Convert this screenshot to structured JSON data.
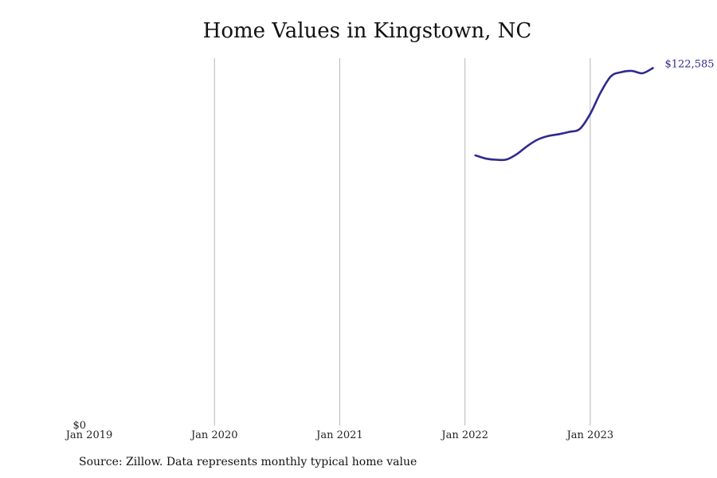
{
  "chart_data": {
    "type": "line",
    "title": "Home Values in Kingstown, NC",
    "xlabel": "",
    "ylabel": "",
    "x_ticks": [
      "Jan 2019",
      "Jan 2020",
      "Jan 2021",
      "Jan 2022",
      "Jan 2023"
    ],
    "y_ticks": [
      "$0"
    ],
    "ylim": [
      0,
      126000
    ],
    "xlim": [
      "Jan 2019",
      "Dec 2023"
    ],
    "grid": "vertical",
    "legend": "none",
    "end_label": "$122,585",
    "line_color": "#2e2a8f",
    "series": [
      {
        "x": [
          "2022-02",
          "2022-03",
          "2022-04",
          "2022-05",
          "2022-06",
          "2022-07",
          "2022-08",
          "2022-09",
          "2022-10",
          "2022-11",
          "2022-12",
          "2023-01",
          "2023-02",
          "2023-03",
          "2023-04",
          "2023-05",
          "2023-06",
          "2023-07"
        ],
        "values": [
          92500,
          91400,
          91000,
          91100,
          93000,
          95800,
          98000,
          99200,
          99800,
          100600,
          101600,
          106800,
          114200,
          119800,
          121200,
          121600,
          120800,
          122585
        ]
      }
    ]
  },
  "footer": {
    "source": "Source: Zillow. Data represents monthly typical home value"
  }
}
